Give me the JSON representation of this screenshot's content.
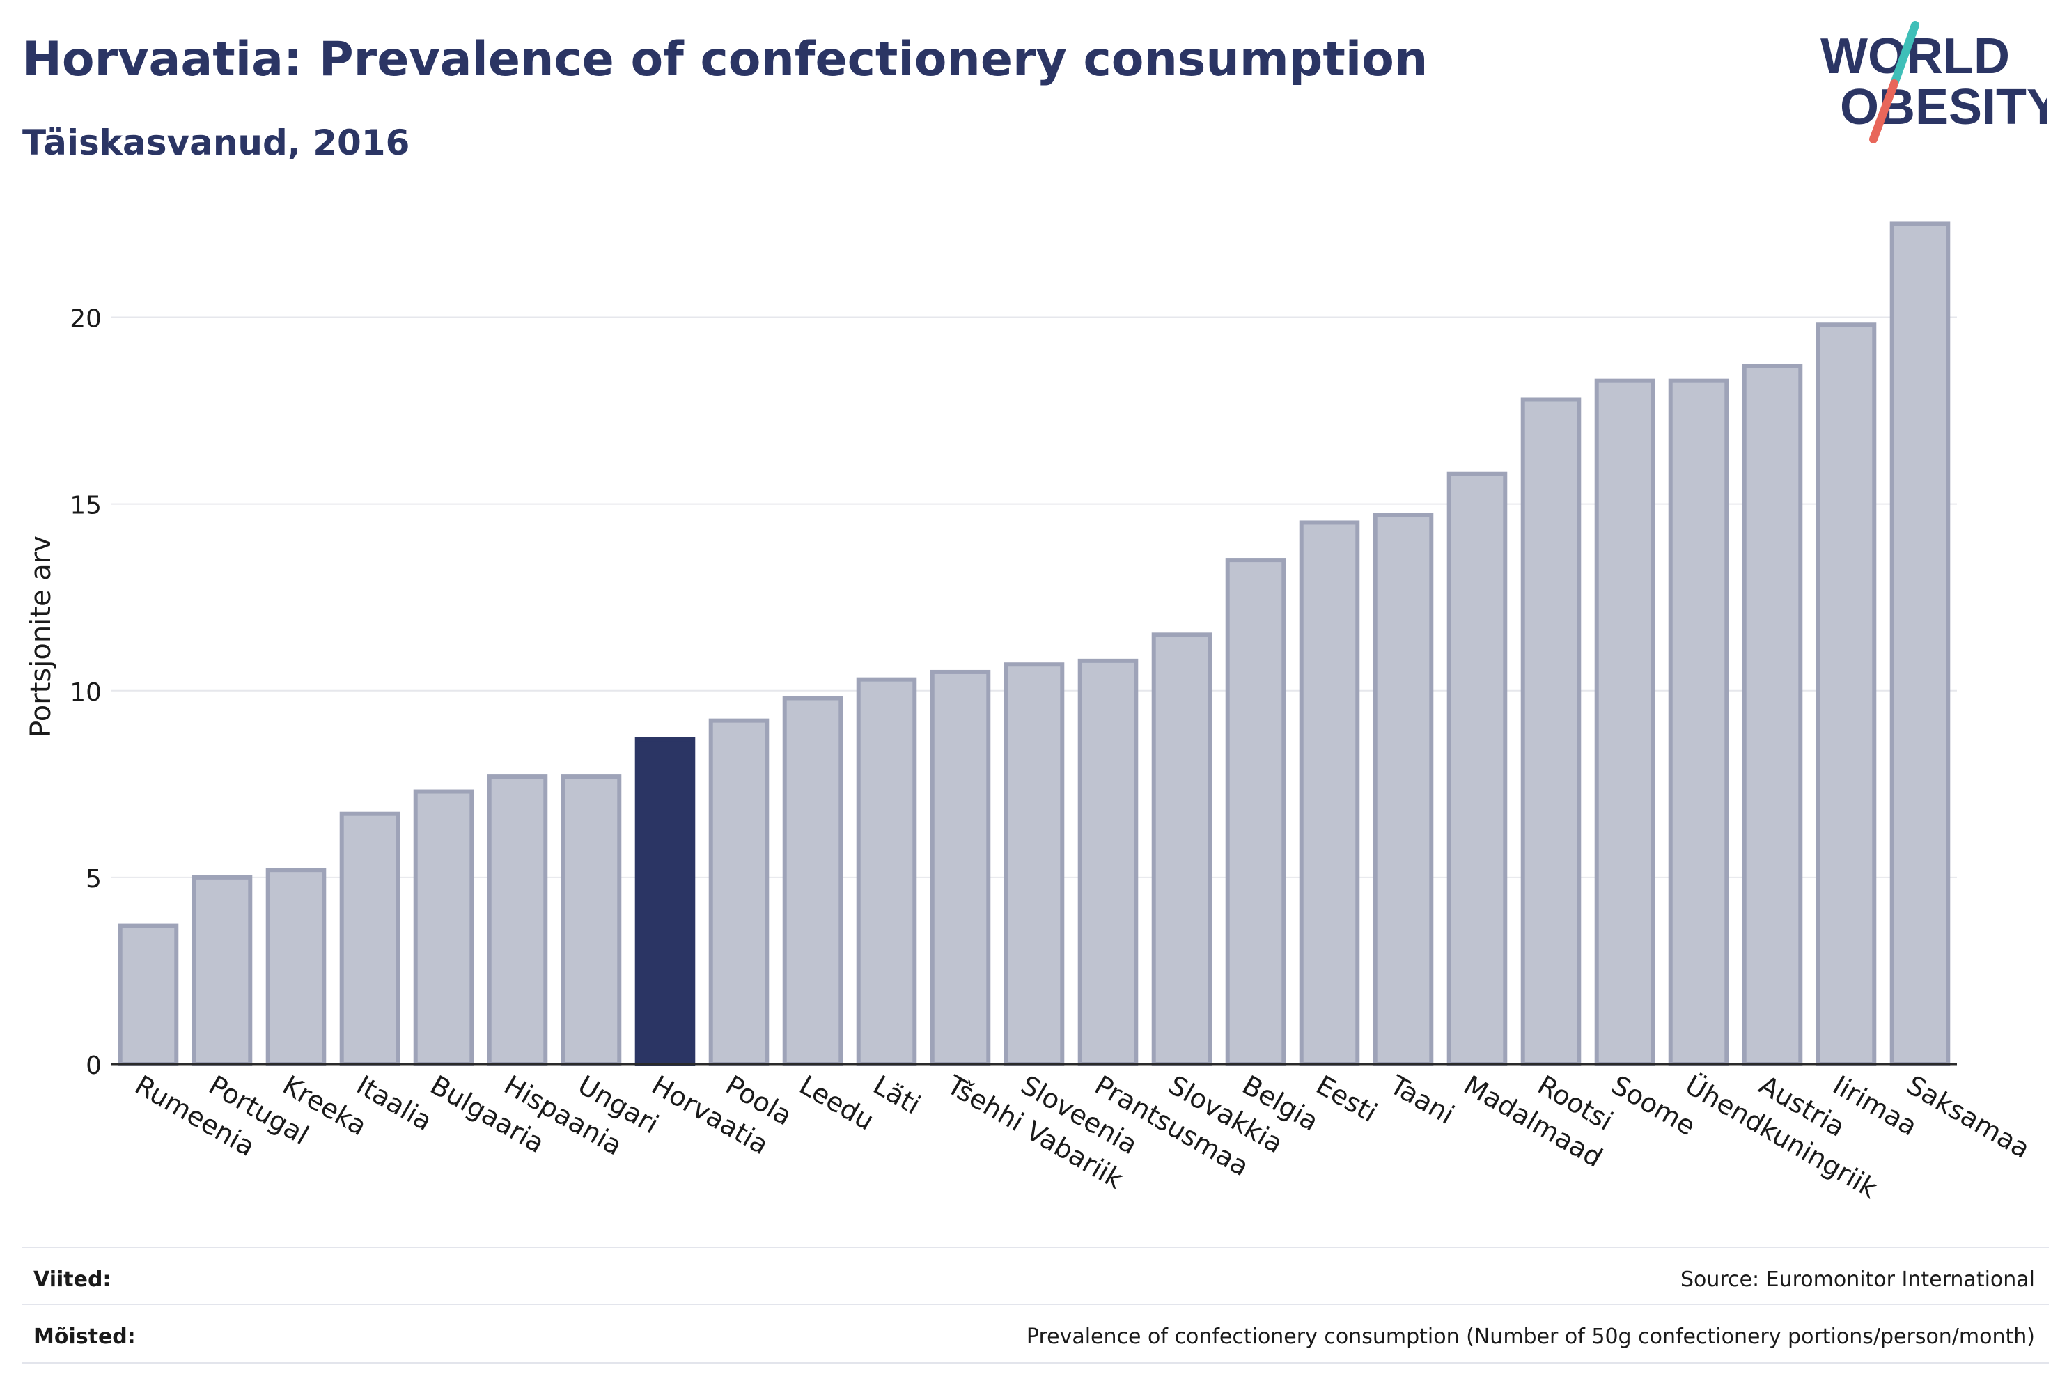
{
  "header": {
    "title": "Horvaatia: Prevalence of confectionery consumption",
    "subtitle": "Täiskasvanud, 2016"
  },
  "logo": {
    "line1": "WORLD",
    "line2": "OBESITY"
  },
  "colors": {
    "highlight": "#2b3564",
    "bar_fill": "#bfc3d0",
    "bar_stroke": "#9ea3b8",
    "text": "#2b3564",
    "logo_teal": "#3fbfb8",
    "logo_red": "#e8665a"
  },
  "chart_data": {
    "type": "bar",
    "title": "Horvaatia: Prevalence of confectionery consumption",
    "subtitle": "Täiskasvanud, 2016",
    "xlabel": "",
    "ylabel": "Portsjonite arv",
    "ylim": [
      0,
      23
    ],
    "yticks": [
      0,
      5,
      10,
      15,
      20
    ],
    "grid": true,
    "highlight": "Horvaatia",
    "categories": [
      "Rumeenia",
      "Portugal",
      "Kreeka",
      "Itaalia",
      "Bulgaaria",
      "Hispaania",
      "Ungari",
      "Horvaatia",
      "Poola",
      "Leedu",
      "Läti",
      "Tšehhi Vabariik",
      "Sloveenia",
      "Prantsusmaa",
      "Slovakkia",
      "Belgia",
      "Eesti",
      "Taani",
      "Madalmaad",
      "Rootsi",
      "Soome",
      "Ühendkuningriik",
      "Austria",
      "Iirimaa",
      "Saksamaa"
    ],
    "values": [
      3.7,
      5.0,
      5.2,
      6.7,
      7.3,
      7.7,
      7.7,
      8.7,
      9.2,
      9.8,
      10.3,
      10.5,
      10.7,
      10.8,
      11.5,
      13.5,
      14.5,
      14.7,
      15.8,
      17.8,
      18.3,
      18.3,
      18.7,
      19.8,
      22.5
    ]
  },
  "footer": {
    "references_label": "Viited:",
    "references_value": "Source: Euromonitor International",
    "definitions_label": "Mõisted:",
    "definitions_value": "Prevalence of confectionery consumption (Number of 50g confectionery portions/person/month)"
  }
}
